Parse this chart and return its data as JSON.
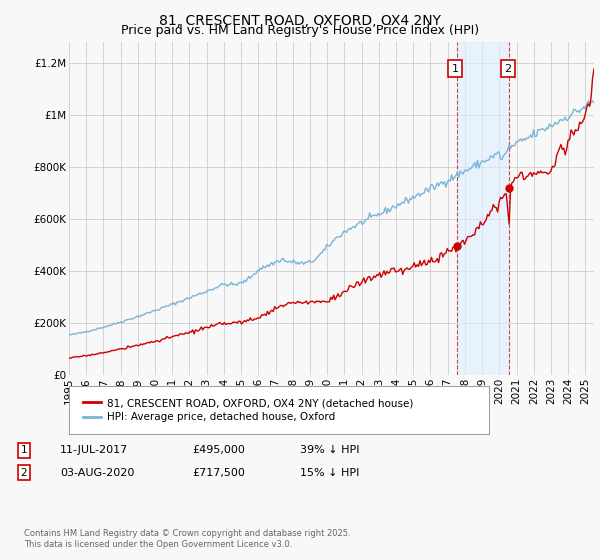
{
  "title": "81, CRESCENT ROAD, OXFORD, OX4 2NY",
  "subtitle": "Price paid vs. HM Land Registry's House Price Index (HPI)",
  "ylabel_ticks": [
    "£0",
    "£200K",
    "£400K",
    "£600K",
    "£800K",
    "£1M",
    "£1.2M"
  ],
  "ytick_values": [
    0,
    200000,
    400000,
    600000,
    800000,
    1000000,
    1200000
  ],
  "ylim": [
    0,
    1280000
  ],
  "xlim_start": 1995.0,
  "xlim_end": 2025.5,
  "hpi_color": "#7ab4d8",
  "hpi_fill_color": "#c8dff0",
  "price_color": "#cc0000",
  "background_color": "#f8f8f8",
  "grid_color": "#cccccc",
  "sale1_x": 2017.53,
  "sale1_y": 495000,
  "sale2_x": 2020.59,
  "sale2_y": 717500,
  "legend_label_price": "81, CRESCENT ROAD, OXFORD, OX4 2NY (detached house)",
  "legend_label_hpi": "HPI: Average price, detached house, Oxford",
  "note1_text": "11-JUL-2017",
  "note1_price": "£495,000",
  "note1_pct": "39% ↓ HPI",
  "note2_text": "03-AUG-2020",
  "note2_price": "£717,500",
  "note2_pct": "15% ↓ HPI",
  "copyright_text": "Contains HM Land Registry data © Crown copyright and database right 2025.\nThis data is licensed under the Open Government Licence v3.0.",
  "title_fontsize": 10,
  "subtitle_fontsize": 9,
  "tick_fontsize": 7.5,
  "shaded_region_color": "#ddeeff",
  "shaded_alpha": 0.6
}
